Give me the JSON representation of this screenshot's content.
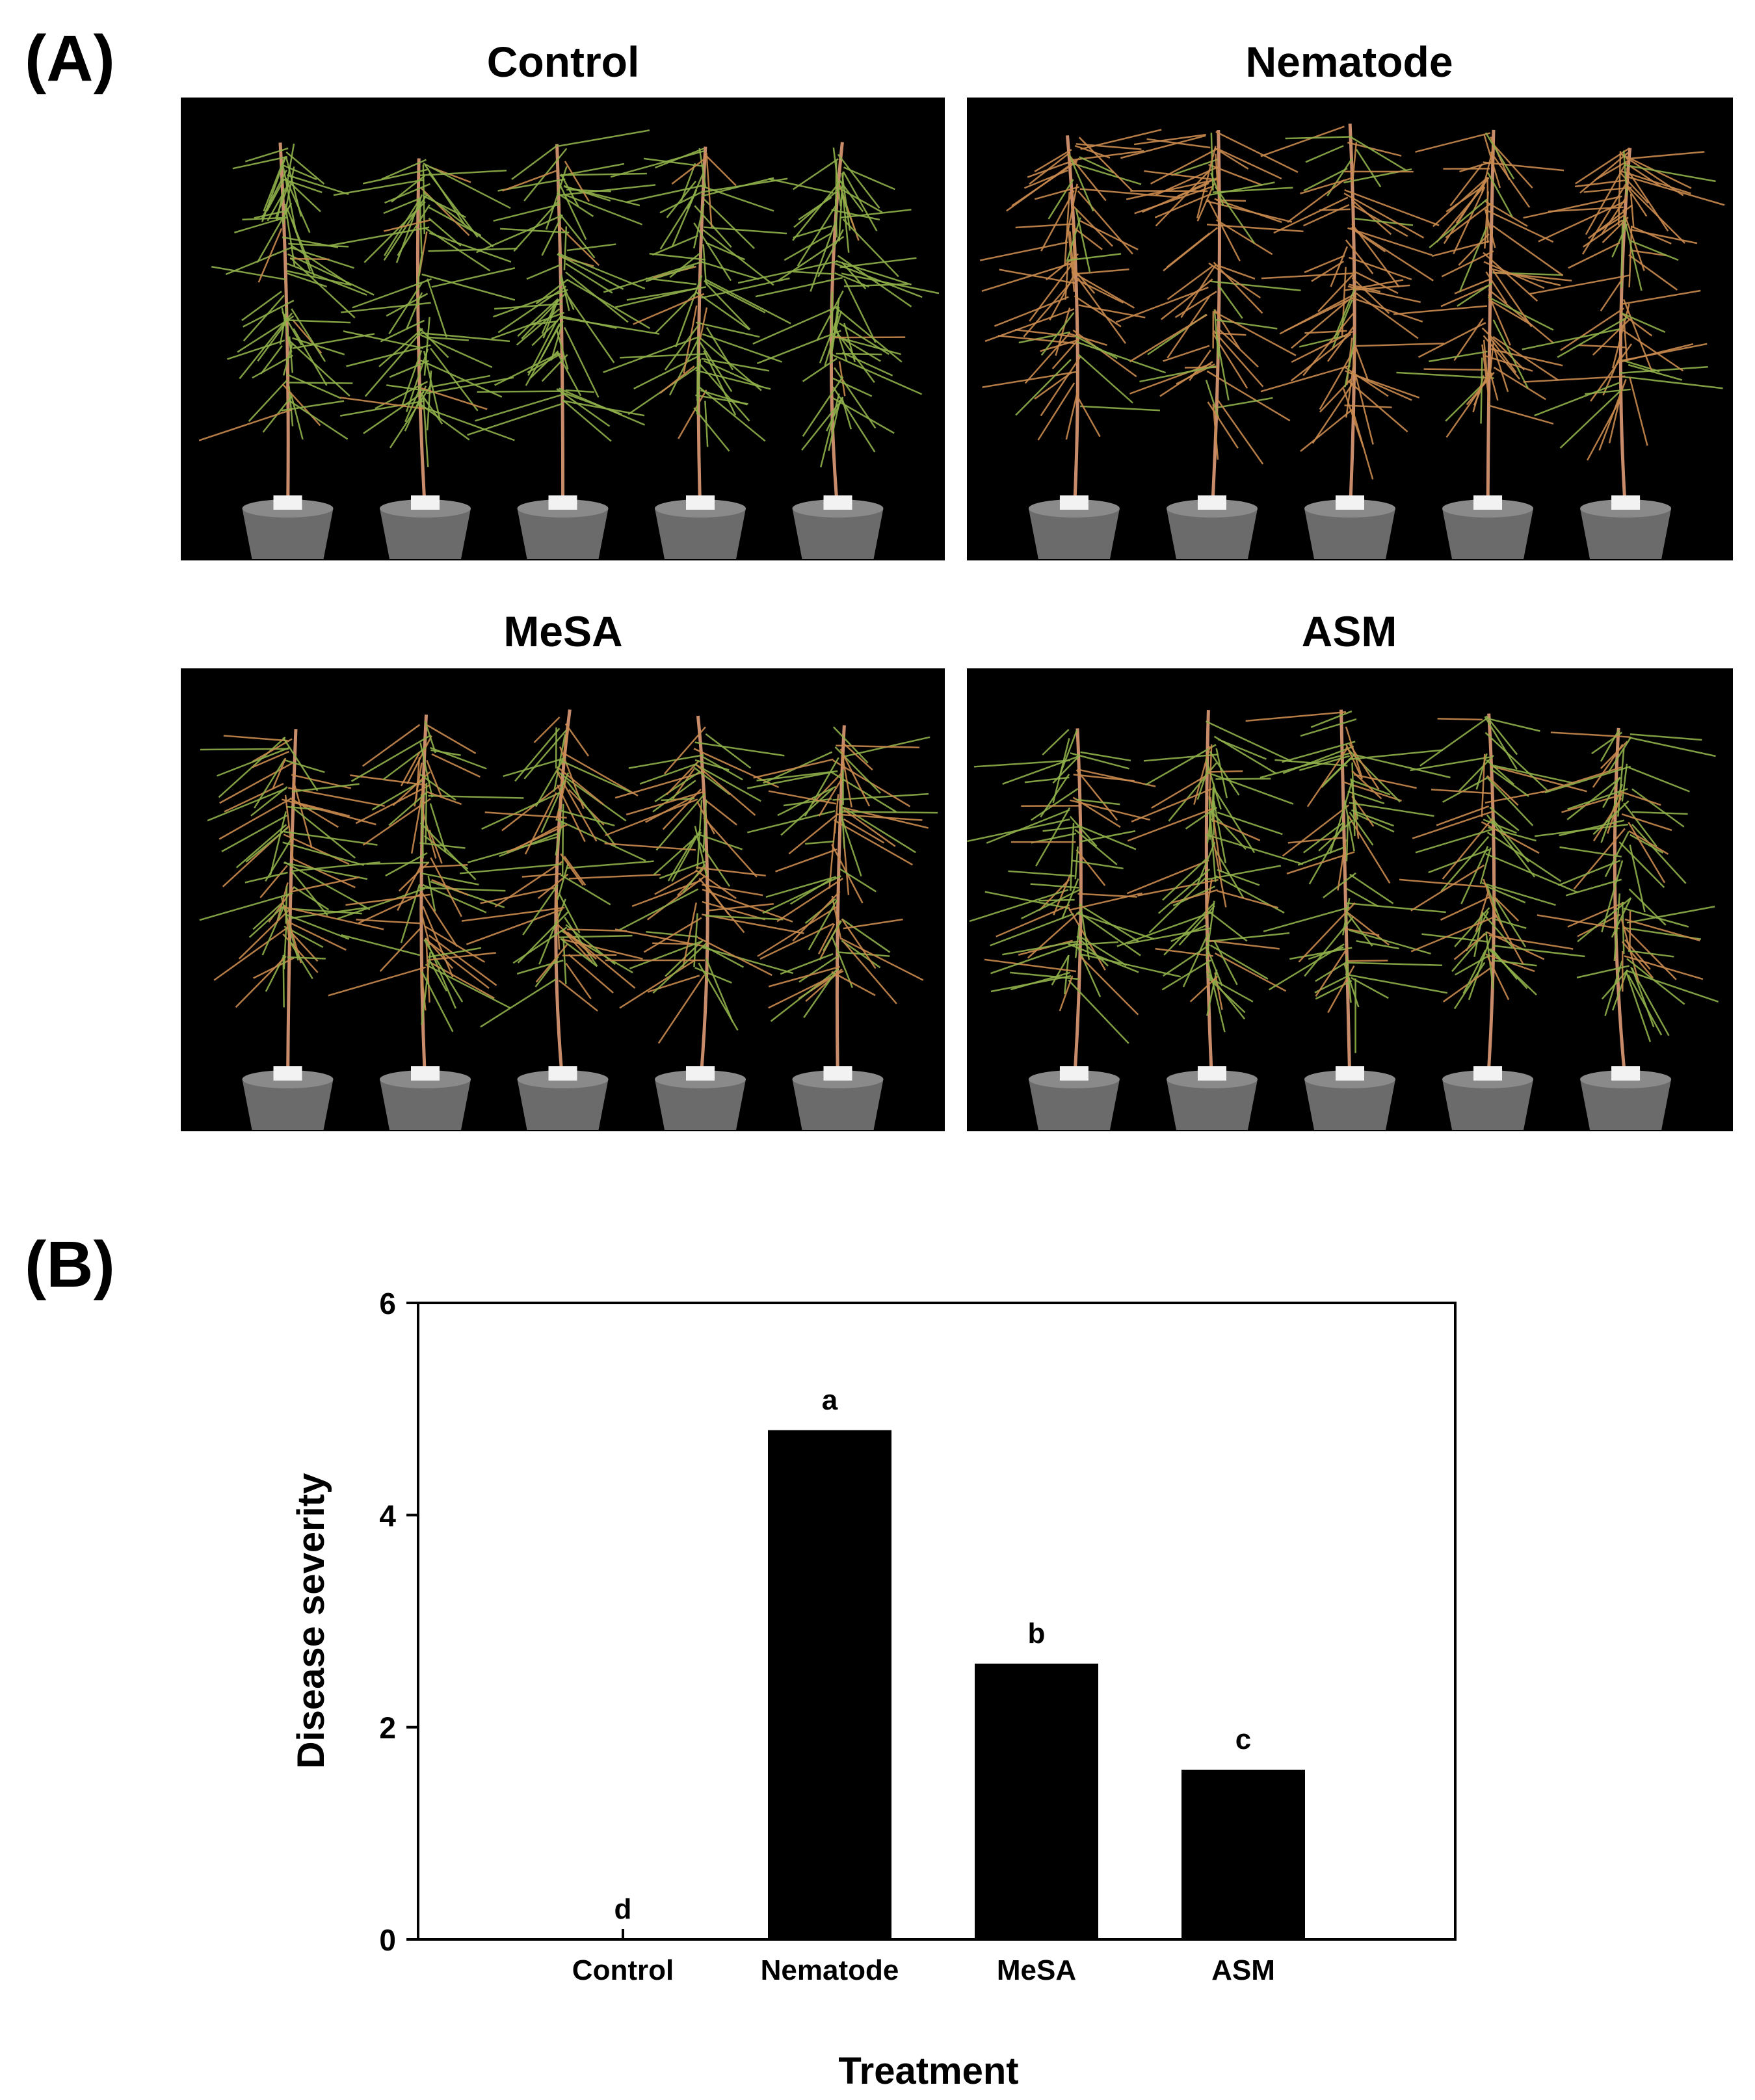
{
  "figure": {
    "panel_a_label": "(A)",
    "panel_b_label": "(B)"
  },
  "photos": [
    {
      "title": "Control",
      "health": "healthy"
    },
    {
      "title": "Nematode",
      "health": "diseased"
    },
    {
      "title": "MeSA",
      "health": "mixed"
    },
    {
      "title": "ASM",
      "health": "mostly-healthy"
    }
  ],
  "colors": {
    "background": "#000000",
    "needle_healthy": "#8fb04a",
    "needle_diseased": "#c98a4e",
    "stem": "#c98c6a",
    "pot": "#6b6b6b",
    "bar": "#000000"
  },
  "chart_data": {
    "type": "bar",
    "categories": [
      "Control",
      "Nematode",
      "MeSA",
      "ASM"
    ],
    "values": [
      0,
      4.8,
      2.6,
      1.6
    ],
    "annotations": [
      "d",
      "a",
      "b",
      "c"
    ],
    "title": "",
    "xlabel": "Treatment",
    "ylabel": "Disease severity",
    "ylim": [
      0,
      6
    ],
    "yticks": [
      0,
      2,
      4,
      6
    ],
    "grid": false,
    "legend": "none"
  }
}
